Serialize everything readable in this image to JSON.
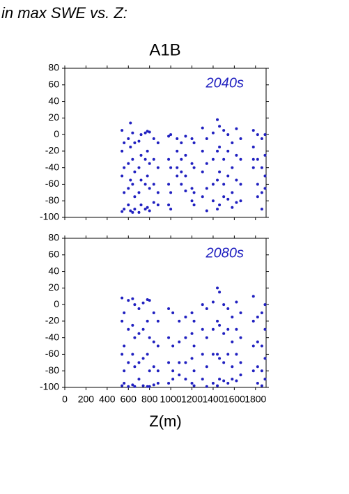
{
  "page_title": "in max SWE vs. Z:",
  "panel_title": "A1B",
  "chart_data": [
    {
      "type": "scatter",
      "annotation": "2040s",
      "xlim": [
        0,
        1900
      ],
      "ylim": [
        -100,
        80
      ],
      "xticks": [
        0,
        200,
        400,
        600,
        800,
        1000,
        1200,
        1400,
        1600,
        1800
      ],
      "yticks": [
        80,
        60,
        40,
        20,
        0,
        -20,
        -40,
        -60,
        -80,
        -100
      ],
      "series": [
        {
          "color": "#2020c0",
          "x": [
            540,
            540,
            540,
            540,
            560,
            560,
            560,
            560,
            600,
            600,
            600,
            600,
            620,
            620,
            620,
            620,
            640,
            640,
            640,
            640,
            660,
            660,
            660,
            660,
            700,
            700,
            700,
            700,
            720,
            720,
            720,
            720,
            760,
            760,
            760,
            760,
            780,
            780,
            780,
            780,
            800,
            800,
            800,
            800,
            840,
            840,
            840,
            840,
            880,
            880,
            880,
            880,
            980,
            980,
            980,
            980,
            1000,
            1000,
            1000,
            1000,
            1060,
            1060,
            1060,
            1060,
            1100,
            1100,
            1100,
            1100,
            1140,
            1140,
            1140,
            1140,
            1200,
            1200,
            1200,
            1200,
            1220,
            1220,
            1220,
            1220,
            1300,
            1300,
            1300,
            1300,
            1340,
            1340,
            1340,
            1340,
            1400,
            1400,
            1400,
            1400,
            1440,
            1440,
            1440,
            1440,
            1460,
            1460,
            1460,
            1460,
            1500,
            1500,
            1500,
            1500,
            1540,
            1540,
            1540,
            1540,
            1580,
            1580,
            1580,
            1580,
            1620,
            1620,
            1620,
            1620,
            1660,
            1660,
            1660,
            1660,
            1780,
            1780,
            1780,
            1780,
            1820,
            1820,
            1820,
            1820,
            1860,
            1860,
            1860,
            1860,
            1890,
            1890,
            1890,
            1890
          ],
          "values": [
            5,
            -20,
            -50,
            -93,
            -10,
            -40,
            -70,
            -90,
            -5,
            -35,
            -65,
            -85,
            14,
            -15,
            -55,
            -92,
            2,
            -30,
            -60,
            -94,
            -10,
            -45,
            -75,
            -90,
            -8,
            -40,
            -70,
            -94,
            0,
            -25,
            -55,
            -85,
            2,
            -30,
            -60,
            -90,
            4,
            -20,
            -50,
            -88,
            3,
            -35,
            -65,
            -92,
            -5,
            -30,
            -60,
            -82,
            -10,
            -40,
            -70,
            -85,
            -2,
            -30,
            -60,
            -85,
            0,
            -40,
            -70,
            -90,
            -5,
            -20,
            -40,
            -50,
            -10,
            -30,
            -45,
            -60,
            -2,
            -25,
            -50,
            -68,
            -5,
            -35,
            -65,
            -80,
            -10,
            -40,
            -70,
            -85,
            8,
            -20,
            -45,
            -75,
            -5,
            -35,
            -65,
            -92,
            2,
            -30,
            -60,
            -80,
            18,
            -20,
            -55,
            -90,
            10,
            -15,
            -45,
            -85,
            5,
            -30,
            -60,
            -75,
            0,
            -20,
            -50,
            -78,
            -10,
            -40,
            -70,
            -88,
            7,
            -25,
            -55,
            -82,
            -5,
            -30,
            -60,
            -80,
            5,
            -15,
            -30,
            -40,
            0,
            -30,
            -60,
            -75,
            -5,
            -40,
            -70,
            -90,
            0,
            -25,
            -50,
            -65
          ]
        }
      ]
    },
    {
      "type": "scatter",
      "annotation": "2080s",
      "xlabel": "Z(m)",
      "xlim": [
        0,
        1900
      ],
      "ylim": [
        -100,
        80
      ],
      "xticks": [
        0,
        200,
        400,
        600,
        800,
        1000,
        1200,
        1400,
        1600,
        1800
      ],
      "yticks": [
        80,
        60,
        40,
        20,
        0,
        -20,
        -40,
        -60,
        -80,
        -100
      ],
      "series": [
        {
          "color": "#2020c0",
          "x": [
            540,
            540,
            540,
            540,
            560,
            560,
            560,
            560,
            600,
            600,
            600,
            600,
            640,
            640,
            640,
            640,
            660,
            660,
            660,
            660,
            700,
            700,
            700,
            700,
            740,
            740,
            740,
            740,
            780,
            780,
            780,
            780,
            800,
            800,
            800,
            800,
            840,
            840,
            840,
            840,
            880,
            880,
            880,
            880,
            980,
            980,
            980,
            980,
            1020,
            1020,
            1020,
            1020,
            1080,
            1080,
            1080,
            1080,
            1140,
            1140,
            1140,
            1140,
            1200,
            1200,
            1200,
            1200,
            1220,
            1220,
            1220,
            1220,
            1300,
            1300,
            1300,
            1300,
            1340,
            1340,
            1340,
            1340,
            1400,
            1400,
            1400,
            1400,
            1440,
            1440,
            1440,
            1440,
            1460,
            1460,
            1460,
            1460,
            1500,
            1500,
            1500,
            1500,
            1540,
            1540,
            1540,
            1540,
            1580,
            1580,
            1580,
            1580,
            1620,
            1620,
            1620,
            1620,
            1660,
            1660,
            1660,
            1660,
            1780,
            1780,
            1780,
            1780,
            1820,
            1820,
            1820,
            1820,
            1860,
            1860,
            1860,
            1860,
            1890,
            1890,
            1890,
            1890
          ],
          "values": [
            8,
            -20,
            -60,
            -98,
            -10,
            -50,
            -80,
            -95,
            5,
            -30,
            -70,
            -99,
            7,
            -25,
            -60,
            -97,
            0,
            -40,
            -75,
            -99,
            -5,
            -35,
            -70,
            -90,
            2,
            -30,
            -65,
            -98,
            6,
            -20,
            -60,
            -99,
            5,
            -40,
            -80,
            -99,
            -10,
            -45,
            -75,
            -97,
            -20,
            -50,
            -80,
            -95,
            -5,
            -40,
            -70,
            -95,
            -10,
            -50,
            -80,
            -90,
            -20,
            -45,
            -70,
            -85,
            -15,
            -40,
            -70,
            -90,
            -10,
            -35,
            -65,
            -95,
            -20,
            -50,
            -80,
            -98,
            0,
            -30,
            -60,
            -90,
            -5,
            -40,
            -75,
            -99,
            3,
            -30,
            -60,
            -95,
            20,
            -20,
            -60,
            -98,
            15,
            -25,
            -65,
            -90,
            0,
            -35,
            -70,
            -92,
            -5,
            -30,
            -60,
            -95,
            -15,
            -45,
            -75,
            -90,
            3,
            -30,
            -60,
            -92,
            -10,
            -40,
            -70,
            -85,
            10,
            -20,
            -50,
            -80,
            -15,
            -45,
            -75,
            -95,
            -10,
            -50,
            -80,
            -98,
            0,
            -30,
            -65,
            -90
          ]
        }
      ]
    }
  ]
}
